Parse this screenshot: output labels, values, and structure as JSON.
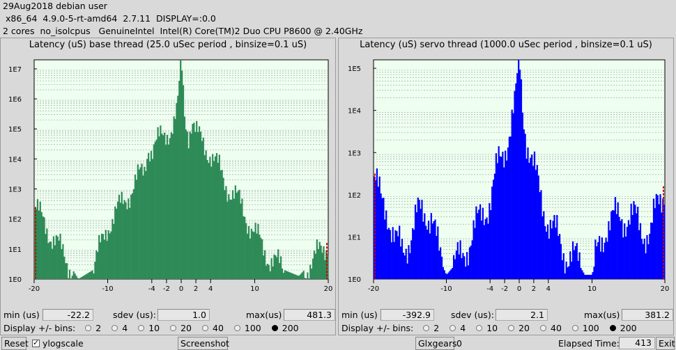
{
  "header": {
    "line1": "29Aug2018 debian user",
    "line2": " x86_64  4.9.0-5-rt-amd64  2.7.11  DISPLAY=:0.0",
    "line3": "2 cores  no_isolcpus   GenuineIntel  Intel(R) Core(TM)2 Duo CPU P8600 @ 2.40GHz"
  },
  "base": {
    "title": "Latency (uS) base thread (25.0 uSec period , binsize=0.1 uS)",
    "min_label": "min (us)",
    "min_value": "-22.2",
    "sdev_label": "sdev (us):",
    "sdev_value": "1.0",
    "max_label": "max(us)",
    "max_value": "481.3",
    "bins_label": "Display +/- bins:"
  },
  "servo": {
    "title": "Latency (uS) servo thread (1000.0 uSec period , binsize=0.1 uS)",
    "min_label": "min (us)",
    "min_value": "-392.9",
    "sdev_label": "sdev (us):",
    "sdev_value": "2.1",
    "max_label": "max(us)",
    "max_value": "381.2",
    "bins_label": "Display +/- bins:"
  },
  "bin_options": [
    "2",
    "4",
    "10",
    "20",
    "40",
    "100",
    "200"
  ],
  "bin_selected": "200",
  "footer": {
    "reset": "Reset",
    "ylogscale": "ylogscale",
    "screenshot": "Screenshot",
    "glxgears": "Glxgears",
    "glxgears_count": "0",
    "elapsed_label": "Elapsed Time:",
    "elapsed_value": "413",
    "exit": "Exit"
  },
  "colors": {
    "base_series": "#2e8b57",
    "servo_series": "#0000ff",
    "plot_bg": "#eefff0",
    "outlier": "#cc0000"
  },
  "chart_data": [
    {
      "type": "bar",
      "title": "Latency (uS) base thread (25.0 uSec period , binsize=0.1 uS)",
      "yscale": "log",
      "y_ticks": [
        "1E0",
        "1E1",
        "1E2",
        "1E3",
        "1E4",
        "1E5",
        "1E6",
        "1E7"
      ],
      "x_ticks": [
        "-20",
        "-10",
        "-4",
        "-2",
        "0",
        "2",
        "4",
        "10",
        "20"
      ],
      "xlim": [
        -20,
        20
      ],
      "ylim_log10": [
        0,
        7.3
      ],
      "x": [
        -20,
        -14,
        -12,
        -10,
        -8,
        -6,
        -5,
        -4.5,
        -4,
        -3,
        -2,
        -1.5,
        -1,
        -0.5,
        0,
        0.5,
        1,
        1.5,
        2,
        3,
        4,
        5,
        6,
        8,
        10,
        12,
        14,
        16,
        20
      ],
      "log10_counts": [
        2.4,
        0,
        0.3,
        1.8,
        2.5,
        3.3,
        3.6,
        4.5,
        4.3,
        4.6,
        4.9,
        5.0,
        5.2,
        5.6,
        7.3,
        5.4,
        4.9,
        5.3,
        4.8,
        4.5,
        4.2,
        3.7,
        3.2,
        2.5,
        1.5,
        0.7,
        0.3,
        0.1,
        1.2
      ]
    },
    {
      "type": "bar",
      "title": "Latency (uS) servo thread (1000.0 uSec period , binsize=0.1 uS)",
      "yscale": "log",
      "y_ticks": [
        "1E0",
        "1E1",
        "1E2",
        "1E3",
        "1E4",
        "1E5"
      ],
      "x_ticks": [
        "-20",
        "-10",
        "-4",
        "-2",
        "0",
        "2",
        "4",
        "10",
        "20"
      ],
      "xlim": [
        -20,
        20
      ],
      "ylim_log10": [
        0,
        5.2
      ],
      "x": [
        -20,
        -19,
        -18,
        -17,
        -16,
        -14,
        -12,
        -11,
        -10,
        -8,
        -6,
        -4,
        -3,
        -2,
        -1,
        -0.5,
        0,
        0.5,
        1,
        2,
        3,
        4,
        6,
        8,
        9,
        10,
        11,
        12,
        14,
        16,
        18,
        19,
        20
      ],
      "log10_counts": [
        2.5,
        1.8,
        1.6,
        0.9,
        0.6,
        1.5,
        1.6,
        0.5,
        0.1,
        0.5,
        1.2,
        1.9,
        2.6,
        3.1,
        3.8,
        4.2,
        5.2,
        4.0,
        3.4,
        2.6,
        1.9,
        1.4,
        0.7,
        0.4,
        0.1,
        0.1,
        0.8,
        1.3,
        1.5,
        1.4,
        1.0,
        1.8,
        2.2
      ]
    }
  ]
}
